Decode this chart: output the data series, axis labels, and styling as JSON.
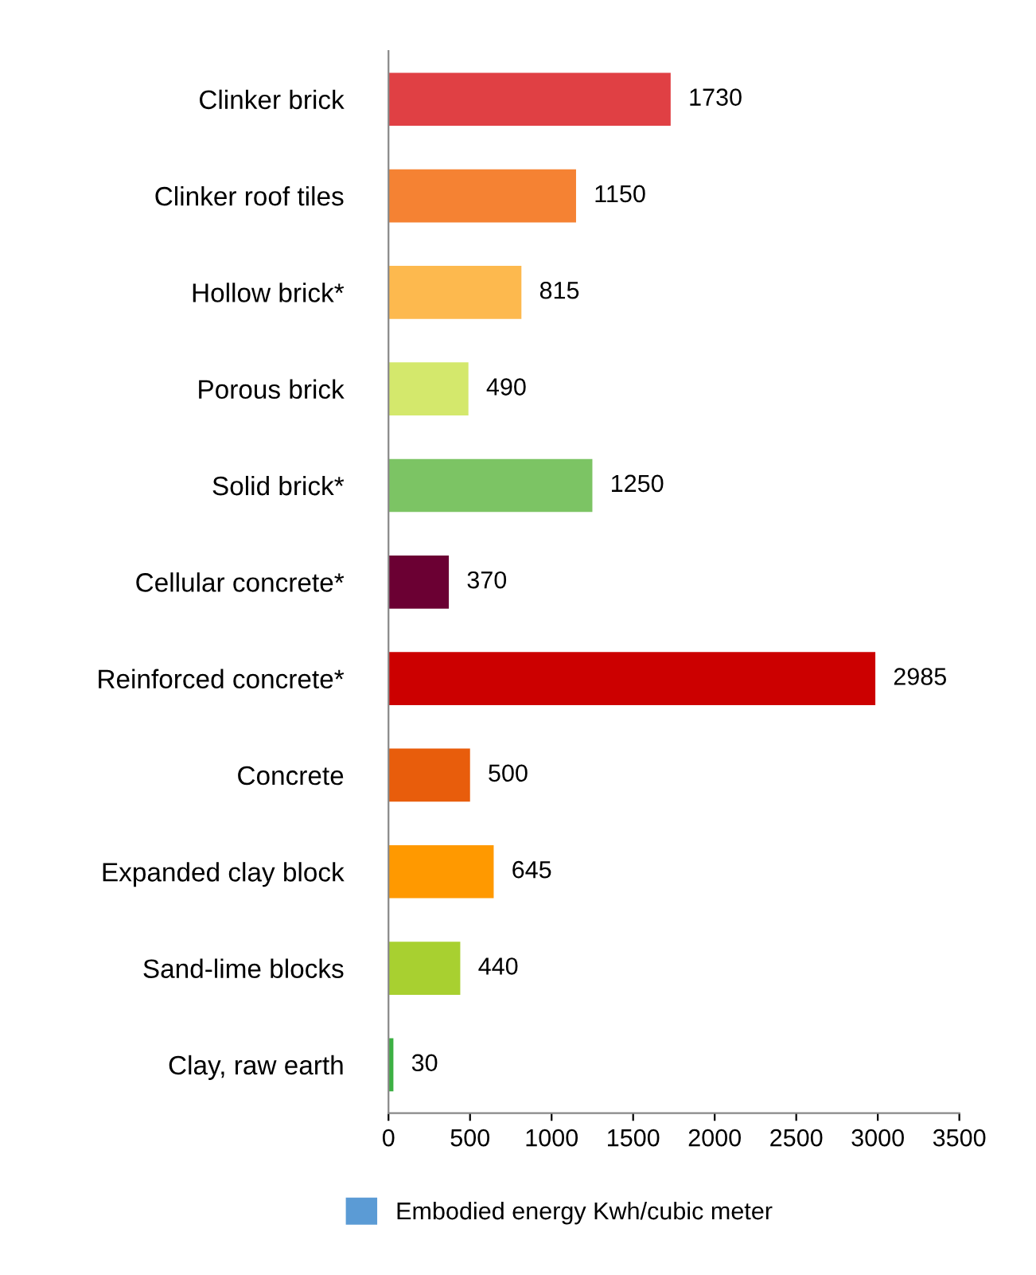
{
  "chart_data": {
    "type": "bar",
    "orientation": "horizontal",
    "categories": [
      "Clinker brick",
      "Clinker roof tiles",
      "Hollow brick*",
      "Porous brick",
      "Solid brick*",
      "Cellular concrete*",
      "Reinforced concrete*",
      "Concrete",
      "Expanded clay block",
      "Sand-lime blocks",
      "Clay, raw earth"
    ],
    "series": [
      {
        "name": "Embodied energy Kwh/cubic meter",
        "color": "#5b9bd5",
        "colors": [
          "#e04044",
          "#f58233",
          "#fdb94e",
          "#d4e86c",
          "#7cc464",
          "#6b0033",
          "#cc0000",
          "#e85d0c",
          "#ff9900",
          "#a8d030",
          "#3cb043"
        ],
        "values": [
          1730,
          1150,
          815,
          490,
          1250,
          370,
          2985,
          500,
          645,
          440,
          30
        ]
      }
    ],
    "xlim": [
      0,
      3500
    ],
    "xticks": [
      0,
      500,
      1000,
      1500,
      2000,
      2500,
      3000,
      3500
    ],
    "data_labels": true,
    "grid": false,
    "legend": "bottom"
  }
}
